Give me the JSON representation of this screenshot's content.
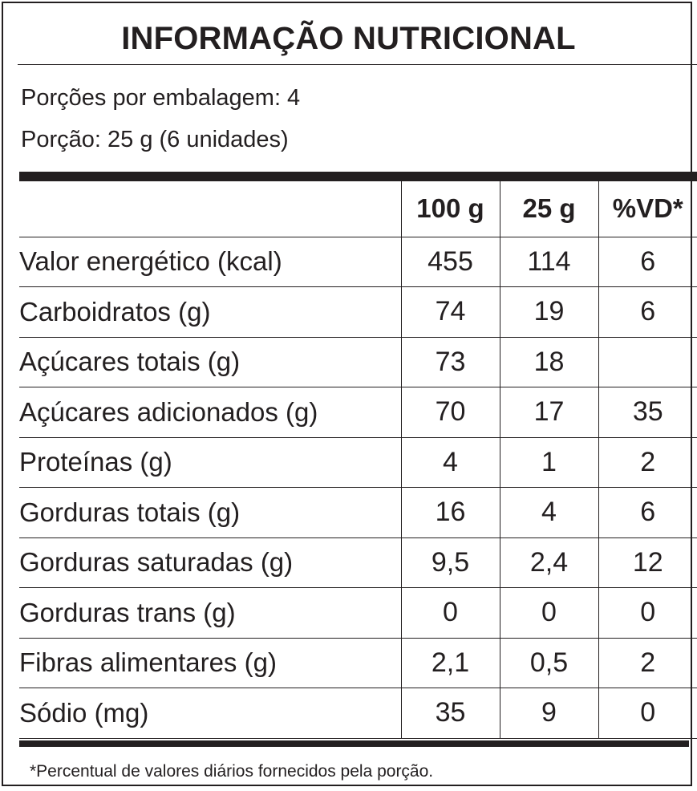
{
  "title": "INFORMAÇÃO NUTRICIONAL",
  "servings_per_package": "Porções por embalagem: 4",
  "serving_size": "Porção: 25 g (6 unidades)",
  "columns": [
    "100 g",
    "25 g",
    "%VD*"
  ],
  "rows": [
    {
      "nutrient": "Valor energético (kcal)",
      "per_100g": "455",
      "per_serving": "114",
      "dv": "6"
    },
    {
      "nutrient": "Carboidratos (g)",
      "per_100g": "74",
      "per_serving": "19",
      "dv": "6"
    },
    {
      "nutrient": "Açúcares totais (g)",
      "per_100g": "73",
      "per_serving": "18",
      "dv": ""
    },
    {
      "nutrient": "Açúcares adicionados (g)",
      "per_100g": "70",
      "per_serving": "17",
      "dv": "35"
    },
    {
      "nutrient": "Proteínas (g)",
      "per_100g": "4",
      "per_serving": "1",
      "dv": "2"
    },
    {
      "nutrient": "Gorduras totais (g)",
      "per_100g": "16",
      "per_serving": "4",
      "dv": "6"
    },
    {
      "nutrient": "Gorduras saturadas (g)",
      "per_100g": "9,5",
      "per_serving": "2,4",
      "dv": "12"
    },
    {
      "nutrient": "Gorduras trans (g)",
      "per_100g": "0",
      "per_serving": "0",
      "dv": "0"
    },
    {
      "nutrient": "Fibras alimentares (g)",
      "per_100g": "2,1",
      "per_serving": "0,5",
      "dv": "2"
    },
    {
      "nutrient": "Sódio (mg)",
      "per_100g": "35",
      "per_serving": "9",
      "dv": "0"
    }
  ],
  "footnote": "*Percentual de valores diários fornecidos pela porção."
}
